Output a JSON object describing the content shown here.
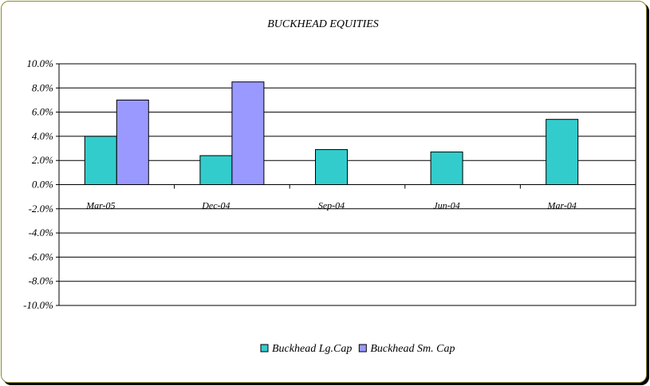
{
  "chart_data": {
    "type": "bar",
    "title": "BUCKHEAD EQUITIES",
    "categories": [
      "Mar-05",
      "Dec-04",
      "Sep-04",
      "Jun-04",
      "Mar-04"
    ],
    "series": [
      {
        "name": "Buckhead Lg.Cap",
        "values": [
          0.04,
          0.024,
          0.029,
          0.027,
          0.054
        ],
        "color": "#33cccc"
      },
      {
        "name": "Buckhead Sm. Cap",
        "values": [
          0.07,
          0.085,
          null,
          null,
          null
        ],
        "color": "#9999ff"
      }
    ],
    "ylim": [
      -0.1,
      0.1
    ],
    "yticks": [
      "10.0%",
      "8.0%",
      "6.0%",
      "4.0%",
      "2.0%",
      "0.0%",
      "-2.0%",
      "-4.0%",
      "-6.0%",
      "-8.0%",
      "-10.0%"
    ],
    "grid": true,
    "legend": "bottom"
  }
}
